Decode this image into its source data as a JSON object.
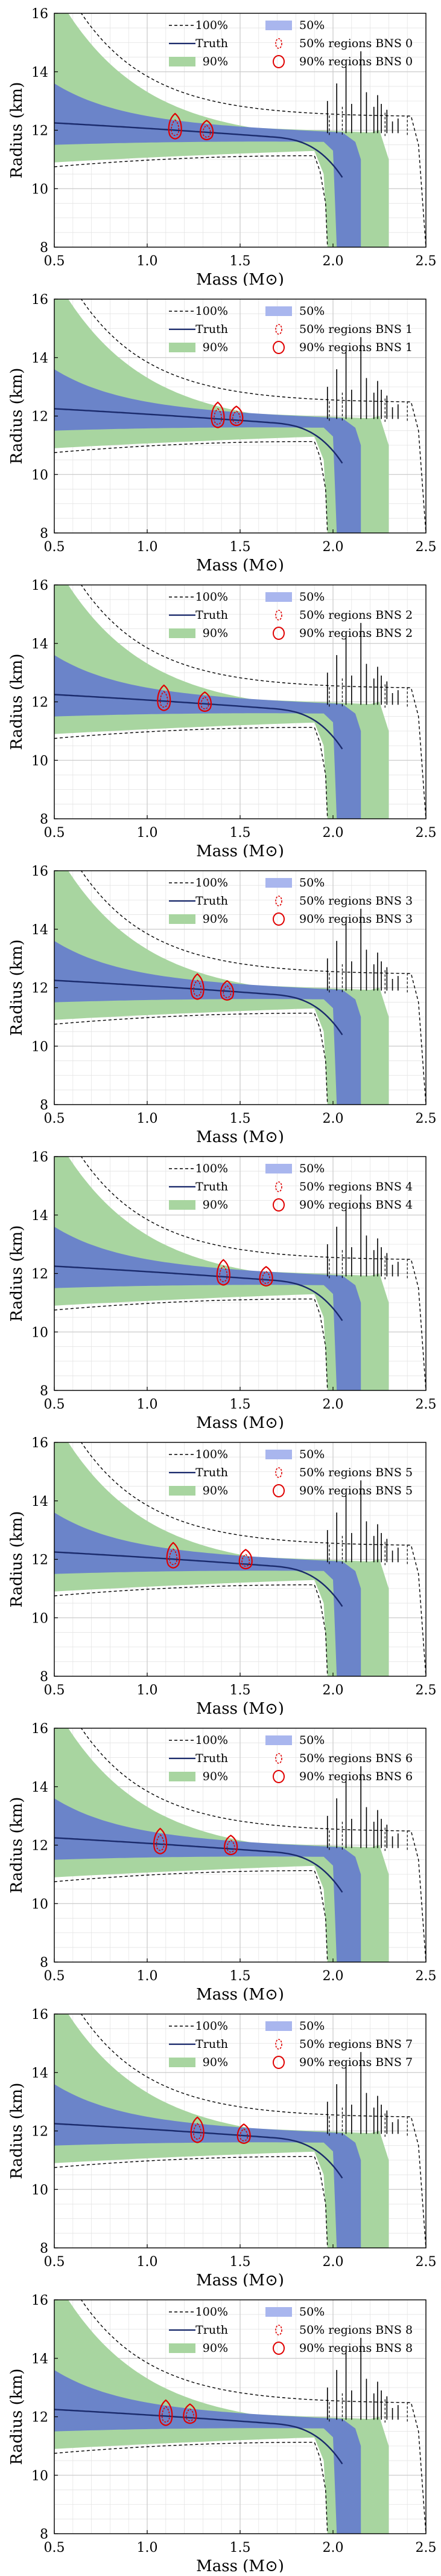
{
  "colors": {
    "green_band": "#a8d5a0",
    "blue_band": "#6b84c9",
    "truth_line": "#1a2a6c",
    "contour": "#e00000",
    "grid": "#cccccc",
    "dashed": "#000000"
  },
  "legend": {
    "row1_left": "100%",
    "row2_left": "Truth",
    "row3_left": "90%",
    "row1_right": "50%",
    "row2_right_prefix": "50% regions",
    "row3_right_prefix": "90% regions"
  },
  "chart_data": [
    {
      "type": "scatter",
      "name": "BNS 0",
      "xlabel": "Mass (M⊙)",
      "ylabel": "Radius (km)",
      "xlim": [
        0.5,
        2.5
      ],
      "ylim": [
        8,
        16
      ],
      "xticks": [
        "0.5",
        "1.0",
        "1.5",
        "2.0",
        "2.5"
      ],
      "yticks": [
        "8",
        "10",
        "12",
        "14",
        "16"
      ],
      "grid": true,
      "legend_position": "top-right",
      "events": [
        {
          "mass": 1.15,
          "radius": 12.0
        },
        {
          "mass": 1.32,
          "radius": 11.9
        }
      ]
    },
    {
      "type": "scatter",
      "name": "BNS 1",
      "xlabel": "Mass (M⊙)",
      "ylabel": "Radius (km)",
      "xlim": [
        0.5,
        2.5
      ],
      "ylim": [
        8,
        16
      ],
      "xticks": [
        "0.5",
        "1.0",
        "1.5",
        "2.0",
        "2.5"
      ],
      "yticks": [
        "8",
        "10",
        "12",
        "14",
        "16"
      ],
      "grid": true,
      "legend_position": "top-right",
      "events": [
        {
          "mass": 1.38,
          "radius": 11.9
        },
        {
          "mass": 1.48,
          "radius": 11.9
        }
      ]
    },
    {
      "type": "scatter",
      "name": "BNS 2",
      "xlabel": "Mass (M⊙)",
      "ylabel": "Radius (km)",
      "xlim": [
        0.5,
        2.5
      ],
      "ylim": [
        8,
        16
      ],
      "xticks": [
        "0.5",
        "1.0",
        "1.5",
        "2.0",
        "2.5"
      ],
      "yticks": [
        "8",
        "10",
        "12",
        "14",
        "16"
      ],
      "grid": true,
      "legend_position": "top-right",
      "events": [
        {
          "mass": 1.09,
          "radius": 12.0
        },
        {
          "mass": 1.31,
          "radius": 11.9
        }
      ]
    },
    {
      "type": "scatter",
      "name": "BNS 3",
      "xlabel": "Mass (M⊙)",
      "ylabel": "Radius (km)",
      "xlim": [
        0.5,
        2.5
      ],
      "ylim": [
        8,
        16
      ],
      "xticks": [
        "0.5",
        "1.0",
        "1.5",
        "2.0",
        "2.5"
      ],
      "yticks": [
        "8",
        "10",
        "12",
        "14",
        "16"
      ],
      "grid": true,
      "legend_position": "top-right",
      "events": [
        {
          "mass": 1.27,
          "radius": 11.9
        },
        {
          "mass": 1.43,
          "radius": 11.8
        }
      ]
    },
    {
      "type": "scatter",
      "name": "BNS 4",
      "xlabel": "Mass (M⊙)",
      "ylabel": "Radius (km)",
      "xlim": [
        0.5,
        2.5
      ],
      "ylim": [
        8,
        16
      ],
      "xticks": [
        "0.5",
        "1.0",
        "1.5",
        "2.0",
        "2.5"
      ],
      "yticks": [
        "8",
        "10",
        "12",
        "14",
        "16"
      ],
      "grid": true,
      "legend_position": "top-right",
      "events": [
        {
          "mass": 1.41,
          "radius": 11.9
        },
        {
          "mass": 1.64,
          "radius": 11.8
        }
      ]
    },
    {
      "type": "scatter",
      "name": "BNS 5",
      "xlabel": "Mass (M⊙)",
      "ylabel": "Radius (km)",
      "xlim": [
        0.5,
        2.5
      ],
      "ylim": [
        8,
        16
      ],
      "xticks": [
        "0.5",
        "1.0",
        "1.5",
        "2.0",
        "2.5"
      ],
      "yticks": [
        "8",
        "10",
        "12",
        "14",
        "16"
      ],
      "grid": true,
      "legend_position": "top-right",
      "events": [
        {
          "mass": 1.14,
          "radius": 12.0
        },
        {
          "mass": 1.53,
          "radius": 11.9
        }
      ]
    },
    {
      "type": "scatter",
      "name": "BNS 6",
      "xlabel": "Mass (M⊙)",
      "ylabel": "Radius (km)",
      "xlim": [
        0.5,
        2.5
      ],
      "ylim": [
        8,
        16
      ],
      "xticks": [
        "0.5",
        "1.0",
        "1.5",
        "2.0",
        "2.5"
      ],
      "yticks": [
        "8",
        "10",
        "12",
        "14",
        "16"
      ],
      "grid": true,
      "legend_position": "top-right",
      "events": [
        {
          "mass": 1.07,
          "radius": 12.0
        },
        {
          "mass": 1.45,
          "radius": 11.9
        }
      ]
    },
    {
      "type": "scatter",
      "name": "BNS 7",
      "xlabel": "Mass (M⊙)",
      "ylabel": "Radius (km)",
      "xlim": [
        0.5,
        2.5
      ],
      "ylim": [
        8,
        16
      ],
      "xticks": [
        "0.5",
        "1.0",
        "1.5",
        "2.0",
        "2.5"
      ],
      "yticks": [
        "8",
        "10",
        "12",
        "14",
        "16"
      ],
      "grid": true,
      "legend_position": "top-right",
      "events": [
        {
          "mass": 1.27,
          "radius": 11.9
        },
        {
          "mass": 1.52,
          "radius": 11.8
        }
      ]
    },
    {
      "type": "scatter",
      "name": "BNS 8",
      "xlabel": "Mass (M⊙)",
      "ylabel": "Radius (km)",
      "xlim": [
        0.5,
        2.5
      ],
      "ylim": [
        8,
        16
      ],
      "xticks": [
        "0.5",
        "1.0",
        "1.5",
        "2.0",
        "2.5"
      ],
      "yticks": [
        "8",
        "10",
        "12",
        "14",
        "16"
      ],
      "grid": true,
      "legend_position": "top-right",
      "events": [
        {
          "mass": 1.1,
          "radius": 12.0
        },
        {
          "mass": 1.23,
          "radius": 12.0
        }
      ]
    }
  ]
}
